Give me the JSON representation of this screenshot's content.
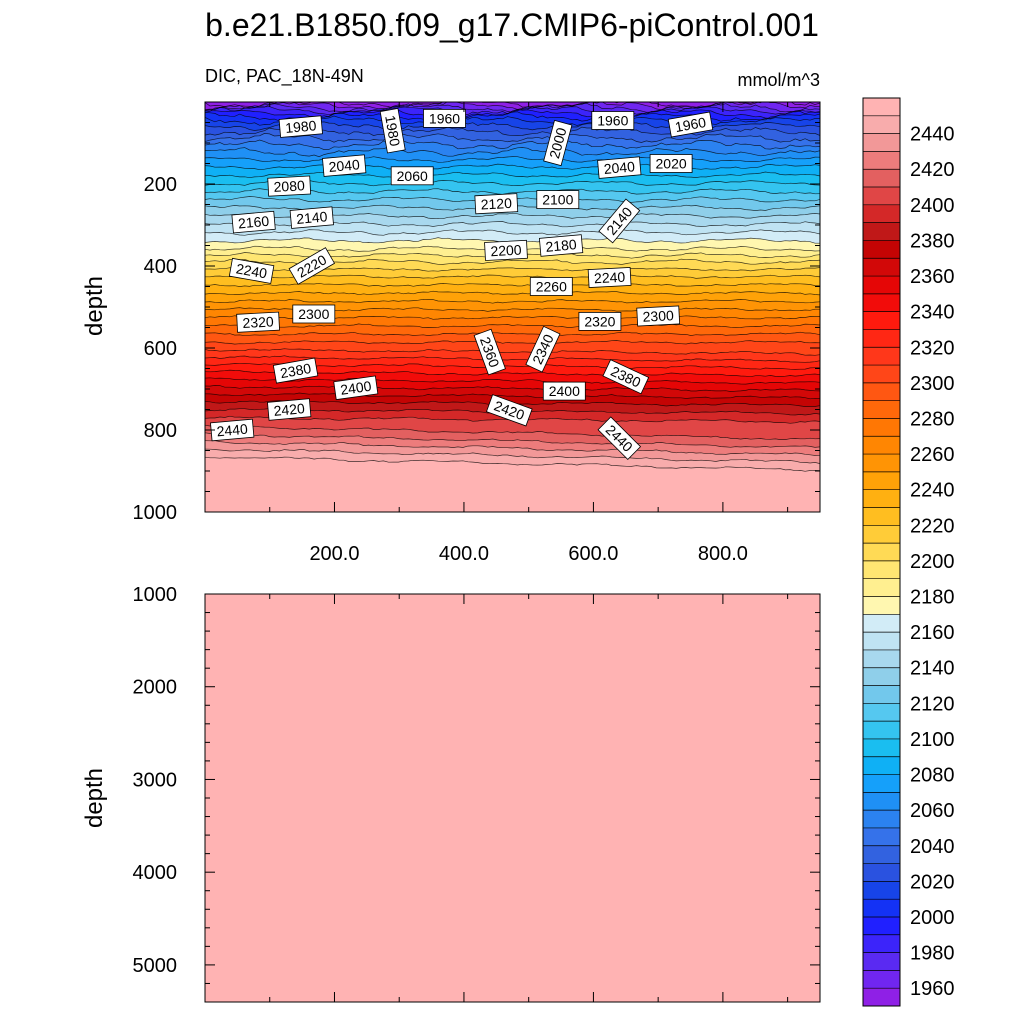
{
  "chart_data": {
    "type": "contour",
    "title": "b.e21.B1850.f09_g17.CMIP6-piControl.001",
    "subtitle_left": "DIC, PAC_18N-49N",
    "subtitle_right": "mmol/m^3",
    "xlabel": "",
    "ylabel": "depth",
    "xlim": [
      0,
      950
    ],
    "x_ticks": [
      "200.0",
      "400.0",
      "600.0",
      "800.0"
    ],
    "x_tick_values": [
      200,
      400,
      600,
      800
    ],
    "upper_panel": {
      "ylim": [
        0,
        1000
      ],
      "y_ticks": [
        "200",
        "400",
        "600",
        "800",
        "1000"
      ],
      "y_tick_values": [
        200,
        400,
        600,
        800,
        1000
      ],
      "levels": [
        1950,
        1960,
        1970,
        1980,
        1990,
        2000,
        2010,
        2020,
        2030,
        2040,
        2050,
        2060,
        2070,
        2080,
        2090,
        2100,
        2110,
        2120,
        2130,
        2140,
        2150,
        2160,
        2170,
        2180,
        2190,
        2200,
        2210,
        2220,
        2230,
        2240,
        2250,
        2260,
        2270,
        2280,
        2290,
        2300,
        2310,
        2320,
        2330,
        2340,
        2350,
        2360,
        2370,
        2380,
        2390,
        2400,
        2410,
        2420,
        2430,
        2440,
        2450
      ],
      "level_depths": [
        4,
        8,
        14,
        20,
        28,
        36,
        46,
        58,
        72,
        88,
        104,
        122,
        140,
        158,
        178,
        198,
        218,
        238,
        258,
        278,
        298,
        318,
        338,
        358,
        374,
        390,
        408,
        426,
        446,
        466,
        486,
        506,
        526,
        546,
        566,
        586,
        604,
        622,
        640,
        658,
        676,
        694,
        712,
        730,
        750,
        770,
        790,
        810,
        828,
        846,
        865
      ],
      "contour_labels": [
        {
          "text": "1980",
          "x": 148,
          "d": 60,
          "rot": -5
        },
        {
          "text": "1960",
          "x": 370,
          "d": 40,
          "rot": 0
        },
        {
          "text": "1980",
          "x": 290,
          "d": 70,
          "rot": 80
        },
        {
          "text": "2000",
          "x": 545,
          "d": 100,
          "rot": -75
        },
        {
          "text": "1960",
          "x": 630,
          "d": 45,
          "rot": 0
        },
        {
          "text": "1960",
          "x": 750,
          "d": 55,
          "rot": -10
        },
        {
          "text": "2040",
          "x": 215,
          "d": 155,
          "rot": -5
        },
        {
          "text": "2060",
          "x": 320,
          "d": 180,
          "rot": 0
        },
        {
          "text": "2080",
          "x": 130,
          "d": 205,
          "rot": -3
        },
        {
          "text": "2040",
          "x": 640,
          "d": 160,
          "rot": -5
        },
        {
          "text": "2020",
          "x": 720,
          "d": 150,
          "rot": 0
        },
        {
          "text": "2120",
          "x": 450,
          "d": 248,
          "rot": -3
        },
        {
          "text": "2100",
          "x": 545,
          "d": 238,
          "rot": 0
        },
        {
          "text": "2160",
          "x": 75,
          "d": 293,
          "rot": -5
        },
        {
          "text": "2140",
          "x": 165,
          "d": 282,
          "rot": -5
        },
        {
          "text": "2140",
          "x": 640,
          "d": 290,
          "rot": -50
        },
        {
          "text": "2200",
          "x": 465,
          "d": 362,
          "rot": -3
        },
        {
          "text": "2180",
          "x": 550,
          "d": 350,
          "rot": -5
        },
        {
          "text": "2240",
          "x": 72,
          "d": 412,
          "rot": 10
        },
        {
          "text": "2220",
          "x": 165,
          "d": 400,
          "rot": -30
        },
        {
          "text": "2260",
          "x": 535,
          "d": 450,
          "rot": 0
        },
        {
          "text": "2240",
          "x": 625,
          "d": 428,
          "rot": -3
        },
        {
          "text": "2300",
          "x": 168,
          "d": 517,
          "rot": 0
        },
        {
          "text": "2320",
          "x": 82,
          "d": 537,
          "rot": -3
        },
        {
          "text": "2320",
          "x": 610,
          "d": 535,
          "rot": 0
        },
        {
          "text": "2300",
          "x": 700,
          "d": 522,
          "rot": -3
        },
        {
          "text": "2360",
          "x": 440,
          "d": 610,
          "rot": 70
        },
        {
          "text": "2340",
          "x": 522,
          "d": 603,
          "rot": -65
        },
        {
          "text": "2380",
          "x": 140,
          "d": 655,
          "rot": -10
        },
        {
          "text": "2380",
          "x": 650,
          "d": 670,
          "rot": 25
        },
        {
          "text": "2400",
          "x": 233,
          "d": 697,
          "rot": -8
        },
        {
          "text": "2400",
          "x": 555,
          "d": 705,
          "rot": 0
        },
        {
          "text": "2420",
          "x": 130,
          "d": 750,
          "rot": -5
        },
        {
          "text": "2420",
          "x": 470,
          "d": 752,
          "rot": 20
        },
        {
          "text": "2440",
          "x": 42,
          "d": 800,
          "rot": -5
        },
        {
          "text": "2440",
          "x": 640,
          "d": 820,
          "rot": 45
        }
      ]
    },
    "lower_panel": {
      "ylim": [
        1000,
        5400
      ],
      "y_ticks": [
        "1000",
        "2000",
        "3000",
        "4000",
        "5000"
      ],
      "y_tick_values": [
        1000,
        2000,
        3000,
        4000,
        5000
      ],
      "fill_value_above": 2450
    },
    "colorbar": {
      "min": 1950,
      "max": 2460,
      "step": 10,
      "tick_labels": [
        "1960",
        "1980",
        "2000",
        "2020",
        "2040",
        "2060",
        "2080",
        "2100",
        "2120",
        "2140",
        "2160",
        "2180",
        "2200",
        "2220",
        "2240",
        "2260",
        "2280",
        "2300",
        "2320",
        "2340",
        "2360",
        "2380",
        "2400",
        "2420",
        "2440"
      ],
      "tick_values": [
        1960,
        1980,
        2000,
        2020,
        2040,
        2060,
        2080,
        2100,
        2120,
        2140,
        2160,
        2180,
        2200,
        2220,
        2240,
        2260,
        2280,
        2300,
        2320,
        2340,
        2360,
        2380,
        2400,
        2420,
        2440
      ],
      "colors": [
        "#8F20E6",
        "#7026F0",
        "#5A2AF2",
        "#3C24FA",
        "#2020FF",
        "#1432F5",
        "#1744E8",
        "#2A52E0",
        "#3262E0",
        "#3572EA",
        "#2B82F0",
        "#1F90F5",
        "#15A0FA",
        "#0FB0F5",
        "#1ABEF0",
        "#34C4F0",
        "#55C8F0",
        "#72C8EC",
        "#8FCFEA",
        "#A8D8EE",
        "#BFE3F3",
        "#D2ECF7",
        "#FFF7B0",
        "#FFEF90",
        "#FFE672",
        "#FFDA55",
        "#FFCC38",
        "#FFBE20",
        "#FFB011",
        "#FFA208",
        "#FF9405",
        "#FF8602",
        "#FF7704",
        "#FF680A",
        "#FF5712",
        "#FF4618",
        "#FF371A",
        "#FF2714",
        "#FF1A0E",
        "#F20C0A",
        "#E50606",
        "#D20808",
        "#C40404",
        "#C01818",
        "#D42828",
        "#E04646",
        "#E36060",
        "#ED7C7C",
        "#F29898",
        "#F8ACAC",
        "#FFB3B3"
      ]
    }
  }
}
